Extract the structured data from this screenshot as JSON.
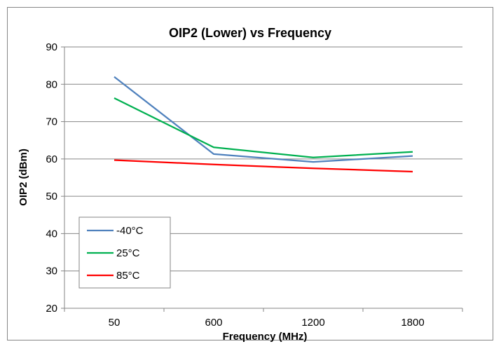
{
  "chart_data": {
    "type": "line",
    "title": "OIP2 (Lower) vs Frequency",
    "xlabel": "Frequency (MHz)",
    "ylabel": "OIP2 (dBm)",
    "categories": [
      "50",
      "600",
      "1200",
      "1800"
    ],
    "ylim": [
      20,
      90
    ],
    "yticks": [
      20,
      30,
      40,
      50,
      60,
      70,
      80,
      90
    ],
    "grid": "horizontal",
    "legend_position": "bottom-left",
    "series": [
      {
        "name": "-40°C",
        "color": "#4F81BD",
        "values": [
          82,
          61.3,
          59.2,
          60.8
        ]
      },
      {
        "name": "25°C",
        "color": "#00B050",
        "values": [
          76.3,
          63.1,
          60.4,
          61.9
        ]
      },
      {
        "name": "85°C",
        "color": "#FF0000",
        "values": [
          59.7,
          58.5,
          57.5,
          56.6
        ]
      }
    ]
  }
}
